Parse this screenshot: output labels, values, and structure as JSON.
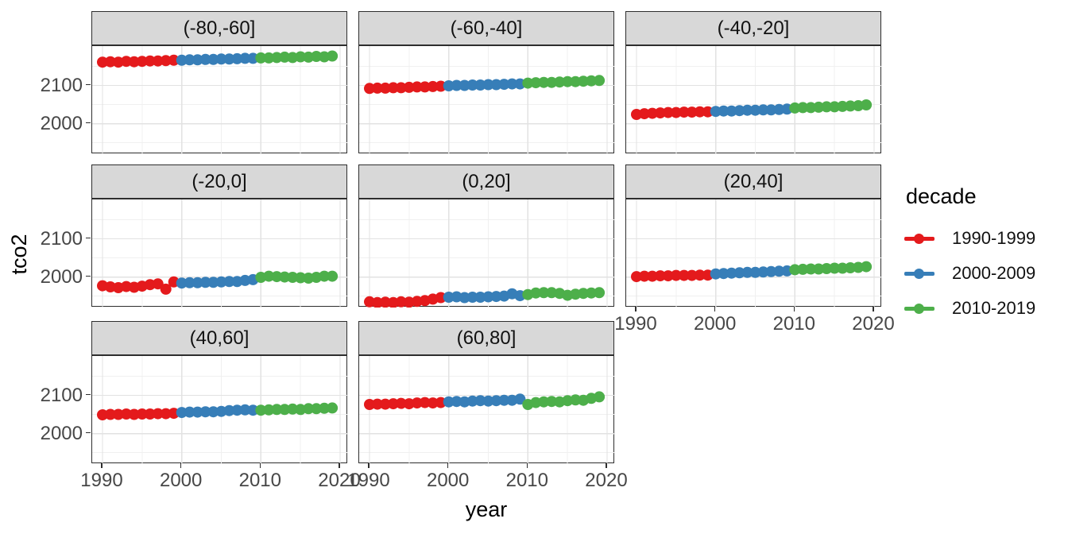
{
  "chart_data": {
    "type": "scatter",
    "title": "",
    "xlabel": "year",
    "ylabel": "tco2",
    "grid": true,
    "legend_position": "right",
    "xlim": [
      1988.7,
      2021.0
    ],
    "ylim": [
      1920,
      2203
    ],
    "x_ticks": [
      1990,
      2000,
      2010,
      2020
    ],
    "x_tick_labels": [
      "1990",
      "2000",
      "2010",
      "2020"
    ],
    "x_minor": [
      1995,
      2005,
      2015
    ],
    "y_ticks": [
      2100,
      2000
    ],
    "y_tick_labels": [
      "2100",
      "2000"
    ],
    "y_minor": [
      2150,
      2050,
      1950
    ],
    "legend": {
      "title": "decade",
      "entries": [
        {
          "label": "1990-1999",
          "color": "#E41A1C"
        },
        {
          "label": "2000-2009",
          "color": "#377EB8"
        },
        {
          "label": "2010-2019",
          "color": "#4DAF4A"
        }
      ]
    },
    "years": [
      1990,
      1991,
      1992,
      1993,
      1994,
      1995,
      1996,
      1997,
      1998,
      1999,
      2000,
      2001,
      2002,
      2003,
      2004,
      2005,
      2006,
      2007,
      2008,
      2009,
      2010,
      2011,
      2012,
      2013,
      2014,
      2015,
      2016,
      2017,
      2018,
      2019
    ],
    "facets": [
      {
        "label": "(-80,-60]",
        "values": [
          2161,
          2162,
          2161,
          2163,
          2162,
          2163,
          2164,
          2164,
          2165,
          2166,
          2166,
          2167,
          2167,
          2168,
          2168,
          2169,
          2169,
          2170,
          2171,
          2171,
          2172,
          2172,
          2173,
          2174,
          2173,
          2175,
          2174,
          2176,
          2175,
          2177
        ]
      },
      {
        "label": "(-60,-40]",
        "values": [
          2092,
          2093,
          2093,
          2094,
          2094,
          2095,
          2096,
          2096,
          2097,
          2098,
          2099,
          2100,
          2100,
          2101,
          2101,
          2102,
          2102,
          2103,
          2104,
          2104,
          2106,
          2107,
          2108,
          2108,
          2109,
          2110,
          2110,
          2111,
          2112,
          2113
        ]
      },
      {
        "label": "(-40,-20]",
        "values": [
          2024,
          2026,
          2027,
          2028,
          2029,
          2029,
          2030,
          2030,
          2031,
          2031,
          2032,
          2033,
          2033,
          2034,
          2035,
          2035,
          2036,
          2036,
          2037,
          2038,
          2041,
          2042,
          2042,
          2043,
          2044,
          2044,
          2045,
          2046,
          2047,
          2049
        ]
      },
      {
        "label": "(-20,0]",
        "values": [
          1977,
          1974,
          1972,
          1975,
          1973,
          1976,
          1980,
          1982,
          1968,
          1987,
          1984,
          1985,
          1985,
          1986,
          1986,
          1987,
          1988,
          1988,
          1991,
          1993,
          1999,
          2002,
          2001,
          2000,
          1999,
          1998,
          1997,
          1999,
          2002,
          2002
        ]
      },
      {
        "label": "(0,20]",
        "values": [
          1935,
          1933,
          1934,
          1933,
          1935,
          1934,
          1936,
          1938,
          1942,
          1946,
          1947,
          1948,
          1946,
          1947,
          1947,
          1948,
          1949,
          1950,
          1956,
          1951,
          1954,
          1958,
          1959,
          1959,
          1957,
          1952,
          1955,
          1957,
          1958,
          1959
        ]
      },
      {
        "label": "(20,40]",
        "values": [
          2001,
          2002,
          2002,
          2003,
          2003,
          2004,
          2004,
          2004,
          2005,
          2005,
          2008,
          2009,
          2010,
          2011,
          2012,
          2012,
          2013,
          2014,
          2015,
          2016,
          2019,
          2020,
          2021,
          2021,
          2022,
          2023,
          2023,
          2024,
          2025,
          2027
        ]
      },
      {
        "label": "(40,60]",
        "values": [
          2049,
          2050,
          2050,
          2051,
          2050,
          2051,
          2051,
          2052,
          2052,
          2053,
          2055,
          2056,
          2056,
          2057,
          2057,
          2058,
          2060,
          2061,
          2062,
          2061,
          2061,
          2062,
          2063,
          2063,
          2064,
          2063,
          2065,
          2065,
          2066,
          2067
        ]
      },
      {
        "label": "(60,80]",
        "values": [
          2076,
          2077,
          2077,
          2078,
          2079,
          2078,
          2080,
          2081,
          2080,
          2081,
          2083,
          2084,
          2083,
          2085,
          2086,
          2085,
          2086,
          2087,
          2087,
          2090,
          2076,
          2081,
          2083,
          2084,
          2083,
          2086,
          2088,
          2087,
          2092,
          2096
        ]
      }
    ],
    "style": {
      "grid_major_color": "#e2e2e2",
      "grid_minor_color": "#f0f0f0",
      "strip_fill": "#d8d8d8",
      "panel_border": "#2e2e2e",
      "tick_text_color": "#474747"
    }
  }
}
